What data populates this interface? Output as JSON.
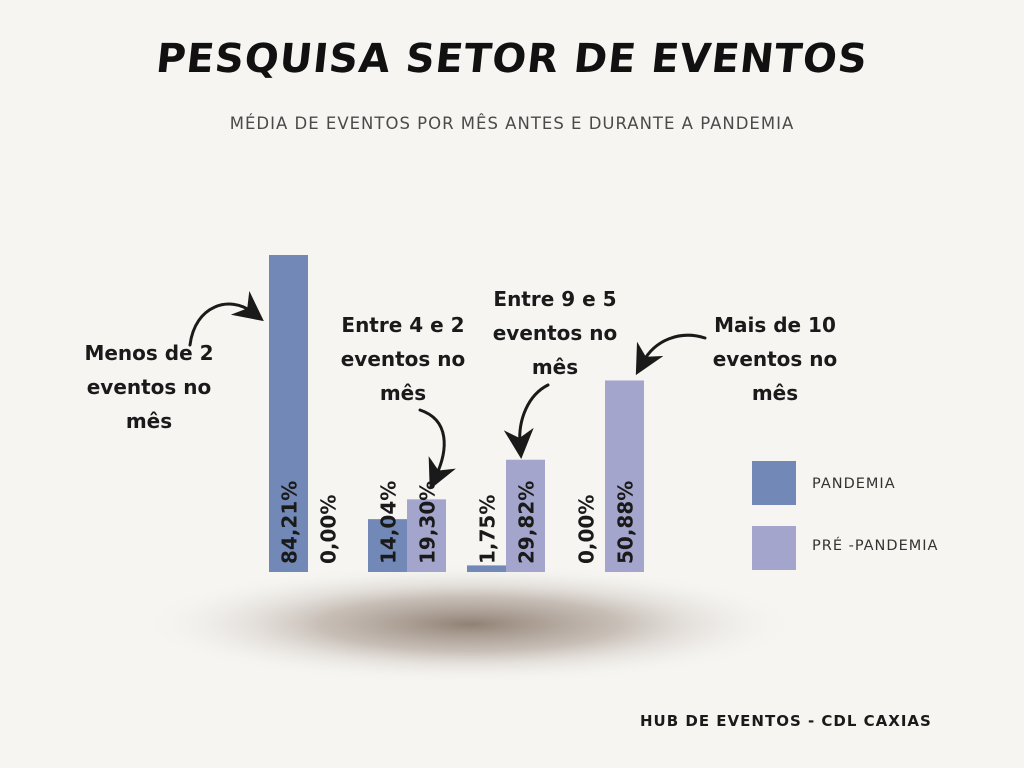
{
  "title": "PESQUISA SETOR DE EVENTOS",
  "subtitle": "MÉDIA DE EVENTOS POR MÊS ANTES E DURANTE A PANDEMIA",
  "footer": "HUB DE EVENTOS - CDL CAXIAS",
  "colors": {
    "pandemia": "#7289b8",
    "pre_pandemia": "#a3a5cc",
    "background": "#f6f5f2"
  },
  "annotations": [
    {
      "line1": "Menos de 2",
      "line2": "eventos no",
      "line3": "mês"
    },
    {
      "line1": "Entre 4 e 2",
      "line2": "eventos no",
      "line3": "mês"
    },
    {
      "line1": "Entre 9 e 5",
      "line2": "eventos no",
      "line3": "mês"
    },
    {
      "line1": "Mais de 10",
      "line2": "eventos no",
      "line3": "mês"
    }
  ],
  "chart_data": {
    "type": "bar",
    "title": "PESQUISA SETOR DE EVENTOS",
    "subtitle": "MÉDIA DE EVENTOS POR MÊS ANTES E DURANTE A PANDEMIA",
    "categories": [
      "Menos de 2 eventos no mês",
      "Entre 4 e 2 eventos no mês",
      "Entre 9 e 5 eventos no mês",
      "Mais de 10 eventos no mês"
    ],
    "series": [
      {
        "name": "PANDEMIA",
        "values": [
          84.21,
          14.04,
          1.75,
          0.0
        ],
        "labels": [
          "84,21%",
          "14,04%",
          "1,75%",
          "0,00%"
        ]
      },
      {
        "name": "PRÉ -PANDEMIA",
        "values": [
          0.0,
          19.3,
          29.82,
          50.88
        ],
        "labels": [
          "0,00%",
          "19,30%",
          "29,82%",
          "50,88%"
        ]
      }
    ],
    "ylim": [
      0,
      84.21
    ],
    "grid": false,
    "legend": "right"
  }
}
